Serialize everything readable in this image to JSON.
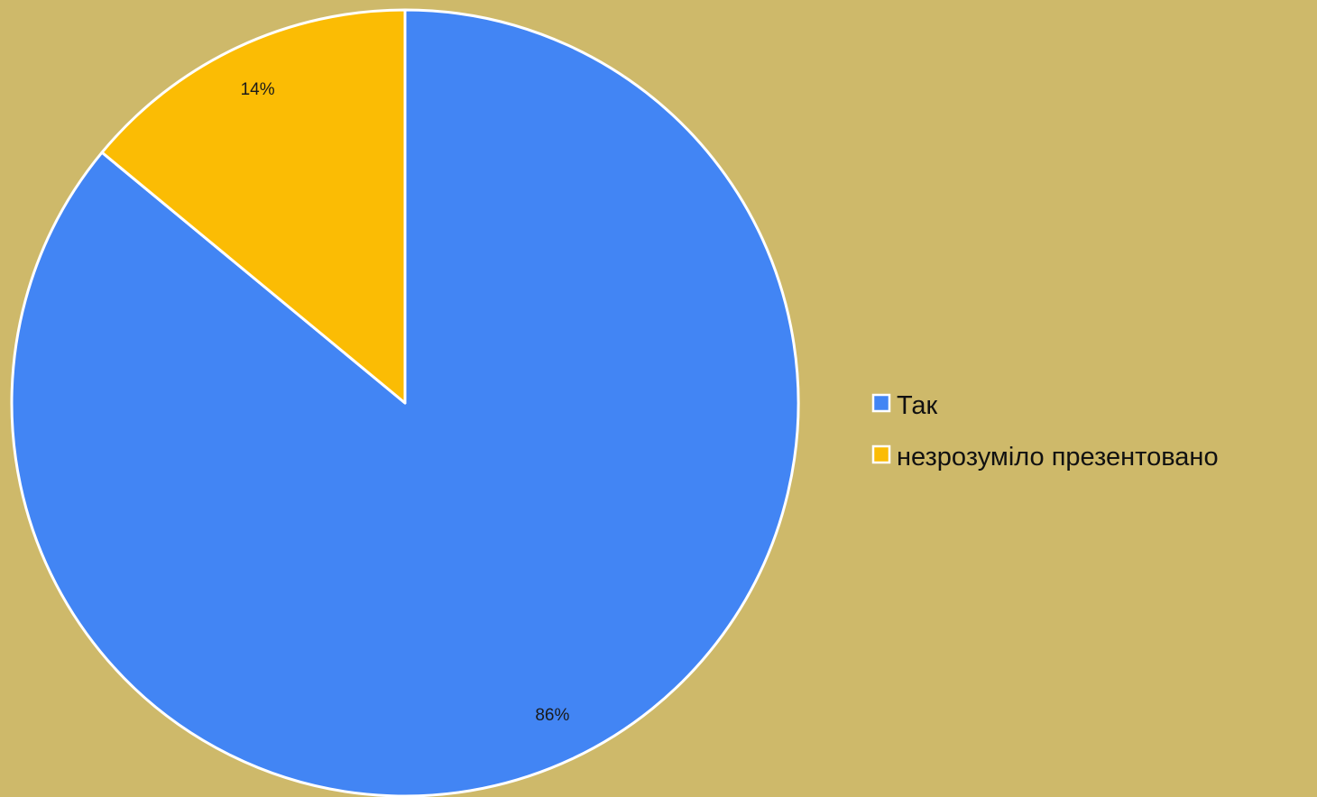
{
  "chart_data": {
    "type": "pie",
    "categories": [
      "Так",
      "незрозуміло презентовано"
    ],
    "values": [
      86,
      14
    ],
    "data_labels": [
      "86%",
      "14%"
    ],
    "colors": [
      "#4285F4",
      "#FBBC04"
    ],
    "start_angle_deg": 0,
    "direction": "clockwise",
    "legend": {
      "position": "right",
      "entries": [
        "Так",
        "незрозуміло презентовано"
      ]
    },
    "title": ""
  }
}
